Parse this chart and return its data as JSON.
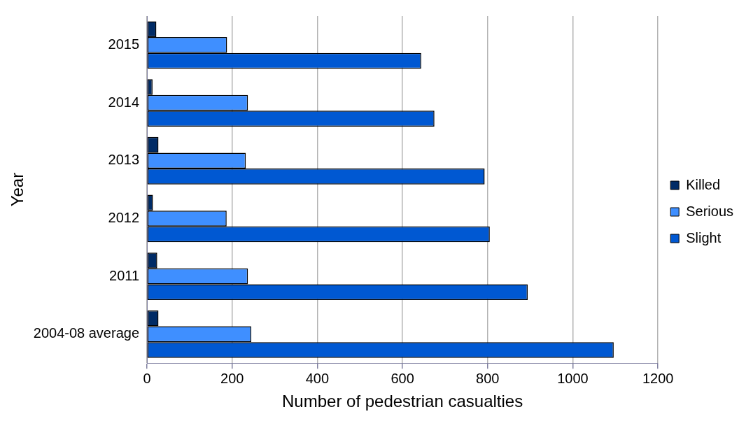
{
  "chart_data": {
    "type": "bar",
    "orientation": "horizontal",
    "xlabel": "Number of pedestrian casualties",
    "ylabel": "Year",
    "categories": [
      "2015",
      "2014",
      "2013",
      "2012",
      "2011",
      "2004-08 average"
    ],
    "series": [
      {
        "name": "Killed",
        "color": "#002b66",
        "values": [
          22,
          13,
          27,
          14,
          24,
          27
        ]
      },
      {
        "name": "Serious",
        "color": "#3f8fff",
        "values": [
          188,
          237,
          232,
          187,
          237,
          245
        ]
      },
      {
        "name": "Slight",
        "color": "#0058d2",
        "values": [
          644,
          675,
          793,
          805,
          894,
          1096
        ]
      }
    ],
    "xlim": [
      0,
      1200
    ],
    "xticks": [
      0,
      200,
      400,
      600,
      800,
      1000,
      1200
    ],
    "grid": "x",
    "legend": "right"
  }
}
